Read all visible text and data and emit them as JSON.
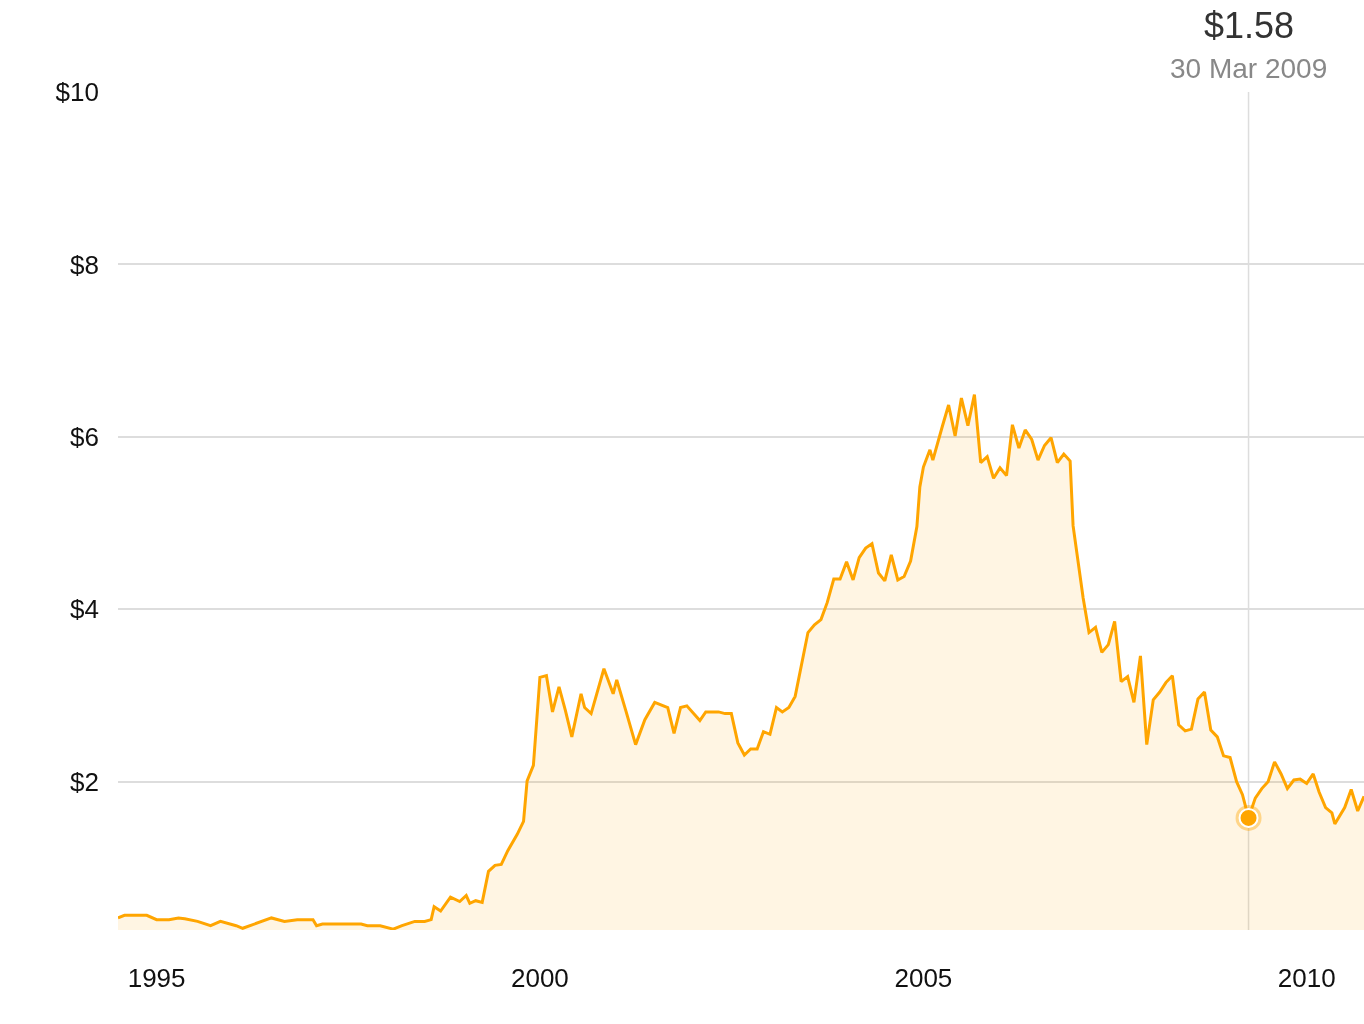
{
  "chart_data": {
    "type": "area",
    "x": [
      "1994-07-01",
      "1994-08-01",
      "1994-11-15",
      "1995-01-01",
      "1995-03-01",
      "1995-04-15",
      "1995-05-15",
      "1995-07-15",
      "1995-09-15",
      "1995-11-01",
      "1996-01-15",
      "1996-02-15",
      "1996-07-01",
      "1996-09-01",
      "1996-11-01",
      "1997-01-15",
      "1997-02-01",
      "1997-03-01",
      "1997-09-01",
      "1997-10-01",
      "1997-12-01",
      "1998-02-01",
      "1998-03-15",
      "1998-05-15",
      "1998-07-01",
      "1998-08-01",
      "1998-08-15",
      "1998-09-15",
      "1998-11-01",
      "1998-12-15",
      "1999-01-15",
      "1999-02-01",
      "1999-03-01",
      "1999-04-01",
      "1999-05-01",
      "1999-06-01",
      "1999-07-01",
      "1999-08-01",
      "1999-09-15",
      "1999-10-15",
      "1999-11-01",
      "1999-12-01",
      "2000-01-01",
      "2000-02-01",
      "2000-03-01",
      "2000-04-01",
      "2000-05-01",
      "2000-06-01",
      "2000-07-15",
      "2000-08-01",
      "2000-09-01",
      "2000-11-01",
      "2000-12-15",
      "2001-01-01",
      "2001-02-15",
      "2001-04-01",
      "2001-05-15",
      "2001-07-01",
      "2001-09-01",
      "2001-10-01",
      "2001-11-01",
      "2001-12-01",
      "2002-02-01",
      "2002-03-01",
      "2002-05-01",
      "2002-06-01",
      "2002-07-01",
      "2002-08-01",
      "2002-09-01",
      "2002-10-01",
      "2002-11-01",
      "2002-12-01",
      "2003-01-01",
      "2003-02-01",
      "2003-03-01",
      "2003-04-01",
      "2003-05-01",
      "2003-07-01",
      "2003-08-01",
      "2003-09-01",
      "2003-10-01",
      "2003-11-01",
      "2003-12-01",
      "2004-01-01",
      "2004-02-01",
      "2004-03-01",
      "2004-04-01",
      "2004-05-01",
      "2004-06-01",
      "2004-07-01",
      "2004-08-01",
      "2004-09-01",
      "2004-10-01",
      "2004-11-01",
      "2004-12-01",
      "2004-12-15",
      "2005-01-01",
      "2005-02-01",
      "2005-02-15",
      "2005-04-01",
      "2005-05-01",
      "2005-06-01",
      "2005-07-01",
      "2005-08-01",
      "2005-09-01",
      "2005-10-01",
      "2005-11-01",
      "2005-12-01",
      "2006-01-01",
      "2006-02-01",
      "2006-03-01",
      "2006-04-01",
      "2006-05-01",
      "2006-06-01",
      "2006-07-01",
      "2006-08-01",
      "2006-09-01",
      "2006-10-01",
      "2006-11-01",
      "2006-12-01",
      "2006-12-15",
      "2007-02-01",
      "2007-03-01",
      "2007-04-01",
      "2007-05-01",
      "2007-06-01",
      "2007-07-01",
      "2007-08-01",
      "2007-09-01",
      "2007-10-01",
      "2007-11-01",
      "2007-12-01",
      "2008-01-01",
      "2008-02-01",
      "2008-03-01",
      "2008-04-01",
      "2008-05-01",
      "2008-06-01",
      "2008-07-01",
      "2008-08-01",
      "2008-09-01",
      "2008-10-01",
      "2008-11-01",
      "2008-12-01",
      "2009-01-01",
      "2009-02-01",
      "2009-03-01",
      "2009-03-30",
      "2009-05-01",
      "2009-06-01",
      "2009-07-01",
      "2009-08-01",
      "2009-09-01",
      "2009-10-01",
      "2009-11-01",
      "2009-12-01",
      "2010-01-01",
      "2010-02-01",
      "2010-03-01",
      "2010-04-01",
      "2010-05-01",
      "2010-05-15",
      "2010-07-01",
      "2010-08-01",
      "2010-09-01",
      "2010-10-01"
    ],
    "series": [
      {
        "color": "#ffa500",
        "values": [
          0.42,
          0.45,
          0.45,
          0.4,
          0.4,
          0.42,
          0.41,
          0.38,
          0.33,
          0.38,
          0.33,
          0.3,
          0.42,
          0.38,
          0.4,
          0.4,
          0.33,
          0.35,
          0.35,
          0.33,
          0.33,
          0.29,
          0.33,
          0.38,
          0.38,
          0.4,
          0.55,
          0.5,
          0.66,
          0.61,
          0.68,
          0.59,
          0.62,
          0.6,
          0.96,
          1.03,
          1.04,
          1.2,
          1.39,
          1.54,
          2.01,
          2.19,
          3.21,
          3.23,
          2.81,
          3.1,
          2.83,
          2.52,
          3.02,
          2.86,
          2.79,
          3.31,
          3.02,
          3.18,
          2.81,
          2.43,
          2.72,
          2.92,
          2.86,
          2.56,
          2.86,
          2.88,
          2.71,
          2.81,
          2.81,
          2.79,
          2.79,
          2.45,
          2.31,
          2.38,
          2.38,
          2.58,
          2.55,
          2.86,
          2.81,
          2.86,
          2.99,
          3.73,
          3.82,
          3.88,
          4.08,
          4.35,
          4.35,
          4.55,
          4.34,
          4.6,
          4.71,
          4.76,
          4.42,
          4.33,
          4.63,
          4.34,
          4.38,
          4.56,
          4.96,
          5.42,
          5.65,
          5.85,
          5.73,
          6.12,
          6.37,
          6.01,
          6.45,
          6.13,
          6.49,
          5.7,
          5.77,
          5.52,
          5.64,
          5.55,
          6.14,
          5.87,
          6.08,
          5.97,
          5.73,
          5.9,
          5.99,
          5.7,
          5.8,
          5.72,
          4.97,
          4.13,
          3.73,
          3.79,
          3.5,
          3.59,
          3.86,
          3.16,
          3.22,
          2.92,
          3.46,
          2.43,
          2.95,
          3.04,
          3.15,
          3.23,
          2.66,
          2.59,
          2.61,
          2.96,
          3.04,
          2.6,
          2.52,
          2.3,
          2.28,
          2.0,
          1.85,
          1.58,
          1.81,
          1.92,
          2.0,
          2.23,
          2.09,
          1.92,
          2.02,
          2.03,
          1.98,
          2.09,
          1.88,
          1.7,
          1.64,
          1.51,
          1.7,
          1.91,
          1.66,
          1.83
        ]
      }
    ],
    "xlim": [
      "1994-07-01",
      "2010-10-01"
    ],
    "xticks": [
      {
        "value": "1995-01-01",
        "label": "1995"
      },
      {
        "value": "2000-01-01",
        "label": "2000"
      },
      {
        "value": "2005-01-01",
        "label": "2005"
      },
      {
        "value": "2010-01-01",
        "label": "2010"
      }
    ],
    "ylim": [
      0.28,
      10
    ],
    "yticks": [
      {
        "value": 2,
        "label": "$2"
      },
      {
        "value": 4,
        "label": "$4"
      },
      {
        "value": 6,
        "label": "$6"
      },
      {
        "value": 8,
        "label": "$8"
      },
      {
        "value": 10,
        "label": "$10"
      }
    ],
    "grid": "y",
    "ref_lines": [
      {
        "axis": "x",
        "value": "2009-03-30",
        "label": "30 Mar 2009",
        "color": "#dddddd"
      }
    ],
    "annotations": [
      "$1.58"
    ]
  }
}
